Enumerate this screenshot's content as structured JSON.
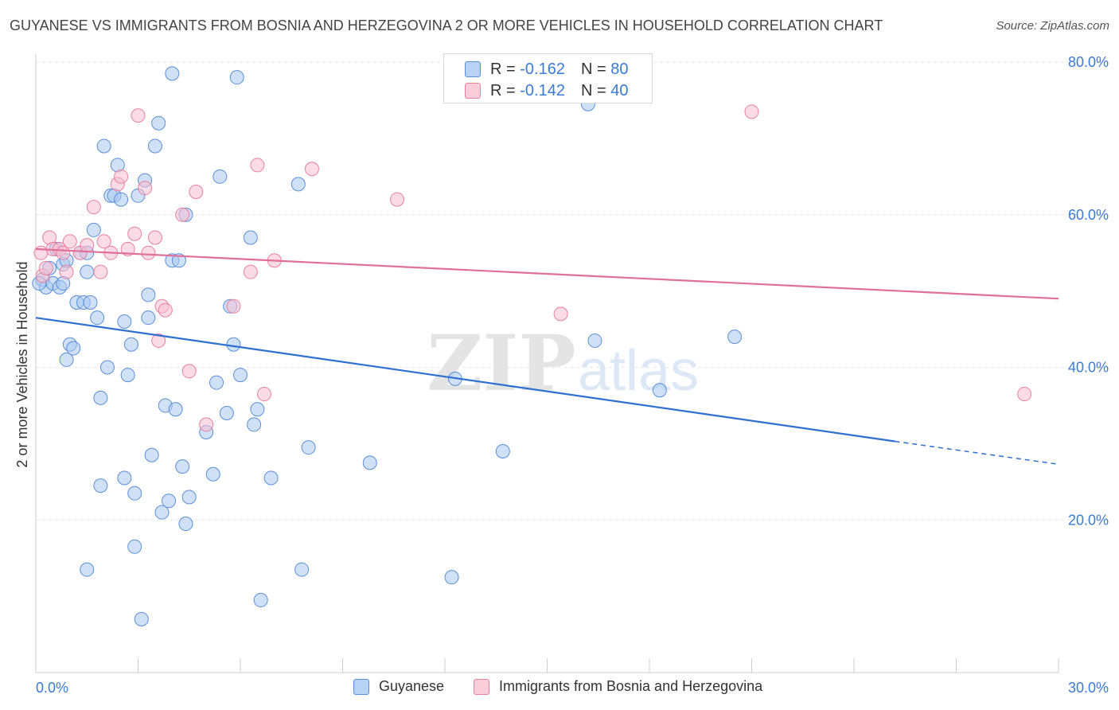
{
  "title": "GUYANESE VS IMMIGRANTS FROM BOSNIA AND HERZEGOVINA 2 OR MORE VEHICLES IN HOUSEHOLD CORRELATION CHART",
  "source": "Source: ZipAtlas.com",
  "watermark": {
    "zip": "ZIP",
    "atlas": "atlas"
  },
  "stats": [
    {
      "r_label": "R =",
      "r_value": "-0.162",
      "n_label": "N =",
      "n_value": "80"
    },
    {
      "r_label": "R =",
      "r_value": "-0.142",
      "n_label": "N =",
      "n_value": "40"
    }
  ],
  "colors": {
    "guyanese_fill": "#a9c8f0",
    "guyanese_stroke": "#5a8fd8",
    "guyanese_line": "#2f6fd1",
    "bosnia_fill": "#f7c0d2",
    "bosnia_stroke": "#e8809f",
    "bosnia_line": "#e0709a",
    "value_text": "#3a7bd5",
    "grid": "#e6e6e6"
  },
  "chart_data": {
    "type": "scatter",
    "title": "GUYANESE VS IMMIGRANTS FROM BOSNIA AND HERZEGOVINA 2 OR MORE VEHICLES IN HOUSEHOLD CORRELATION CHART",
    "xlabel": "",
    "ylabel": "2 or more Vehicles in Household",
    "xlim": [
      0,
      30
    ],
    "ylim": [
      0,
      80
    ],
    "x_tick_labels": [
      "0.0%",
      "30.0%"
    ],
    "y_tick_labels": [
      "20.0%",
      "40.0%",
      "60.0%",
      "80.0%"
    ],
    "y_ticks": [
      20,
      40,
      60,
      80
    ],
    "grid": true,
    "legend_position": "bottom",
    "series": [
      {
        "name": "Guyanese",
        "trend": {
          "x0": 0,
          "y0": 46.5,
          "x1": 25.2,
          "y1": 30.3,
          "dashed_to_x": 30,
          "dashed_to_y": 27.3
        },
        "points": [
          [
            0.2,
            51.5
          ],
          [
            0.3,
            50.5
          ],
          [
            0.4,
            53.0
          ],
          [
            0.5,
            51.0
          ],
          [
            0.6,
            55.5
          ],
          [
            0.7,
            50.5
          ],
          [
            0.8,
            53.5
          ],
          [
            0.8,
            51.0
          ],
          [
            0.9,
            54.0
          ],
          [
            0.9,
            41.0
          ],
          [
            1.0,
            43.0
          ],
          [
            1.1,
            42.5
          ],
          [
            1.2,
            48.5
          ],
          [
            1.3,
            55.0
          ],
          [
            1.4,
            48.5
          ],
          [
            1.5,
            55.0
          ],
          [
            1.5,
            13.5
          ],
          [
            1.5,
            52.5
          ],
          [
            1.6,
            48.5
          ],
          [
            1.7,
            58.0
          ],
          [
            1.8,
            46.5
          ],
          [
            1.9,
            36.0
          ],
          [
            1.9,
            24.5
          ],
          [
            2.0,
            69.0
          ],
          [
            2.1,
            40.0
          ],
          [
            2.2,
            62.5
          ],
          [
            2.3,
            62.5
          ],
          [
            2.4,
            66.5
          ],
          [
            2.5,
            62.0
          ],
          [
            2.6,
            46.0
          ],
          [
            2.6,
            25.5
          ],
          [
            2.7,
            39.0
          ],
          [
            2.8,
            43.0
          ],
          [
            2.9,
            23.5
          ],
          [
            2.9,
            16.5
          ],
          [
            3.0,
            62.5
          ],
          [
            3.1,
            7.0
          ],
          [
            3.2,
            64.5
          ],
          [
            3.3,
            49.5
          ],
          [
            3.3,
            46.5
          ],
          [
            3.4,
            28.5
          ],
          [
            3.5,
            69.0
          ],
          [
            3.6,
            72.0
          ],
          [
            3.7,
            21.0
          ],
          [
            3.8,
            35.0
          ],
          [
            3.9,
            22.5
          ],
          [
            4.0,
            78.5
          ],
          [
            4.0,
            54.0
          ],
          [
            4.1,
            34.5
          ],
          [
            4.2,
            54.0
          ],
          [
            4.3,
            27.0
          ],
          [
            4.4,
            60.0
          ],
          [
            4.4,
            19.5
          ],
          [
            4.5,
            23.0
          ],
          [
            5.0,
            31.5
          ],
          [
            5.2,
            26.0
          ],
          [
            5.3,
            38.0
          ],
          [
            5.4,
            65.0
          ],
          [
            5.6,
            34.0
          ],
          [
            5.7,
            48.0
          ],
          [
            5.8,
            43.0
          ],
          [
            5.9,
            78.0
          ],
          [
            6.0,
            39.0
          ],
          [
            6.3,
            57.0
          ],
          [
            6.4,
            32.5
          ],
          [
            6.5,
            34.5
          ],
          [
            6.6,
            9.5
          ],
          [
            6.9,
            25.5
          ],
          [
            7.7,
            64.0
          ],
          [
            7.8,
            13.5
          ],
          [
            8.0,
            29.5
          ],
          [
            9.8,
            27.5
          ],
          [
            12.2,
            12.5
          ],
          [
            12.3,
            38.5
          ],
          [
            13.7,
            29.0
          ],
          [
            16.2,
            74.5
          ],
          [
            16.4,
            43.5
          ],
          [
            18.3,
            37.0
          ],
          [
            20.5,
            44.0
          ],
          [
            0.1,
            51.0
          ]
        ]
      },
      {
        "name": "Immigrants from Bosnia and Herzegovina",
        "trend": {
          "x0": 0,
          "y0": 55.5,
          "x1": 30,
          "y1": 49.0
        },
        "points": [
          [
            0.2,
            52.0
          ],
          [
            0.3,
            53.0
          ],
          [
            0.4,
            57.0
          ],
          [
            0.5,
            55.5
          ],
          [
            0.7,
            55.5
          ],
          [
            0.8,
            55.0
          ],
          [
            0.9,
            52.5
          ],
          [
            1.0,
            56.5
          ],
          [
            1.3,
            55.0
          ],
          [
            1.5,
            56.0
          ],
          [
            1.7,
            61.0
          ],
          [
            1.9,
            52.5
          ],
          [
            2.0,
            56.5
          ],
          [
            2.2,
            55.0
          ],
          [
            2.4,
            64.0
          ],
          [
            2.5,
            65.0
          ],
          [
            2.7,
            55.5
          ],
          [
            2.9,
            57.5
          ],
          [
            3.0,
            73.0
          ],
          [
            3.2,
            63.5
          ],
          [
            3.3,
            55.0
          ],
          [
            3.5,
            57.0
          ],
          [
            3.6,
            43.5
          ],
          [
            3.7,
            48.0
          ],
          [
            3.8,
            47.5
          ],
          [
            4.3,
            60.0
          ],
          [
            4.5,
            39.5
          ],
          [
            4.7,
            63.0
          ],
          [
            5.0,
            32.5
          ],
          [
            5.8,
            48.0
          ],
          [
            6.3,
            52.5
          ],
          [
            6.5,
            66.5
          ],
          [
            6.7,
            36.5
          ],
          [
            7.0,
            54.0
          ],
          [
            8.1,
            66.0
          ],
          [
            10.6,
            62.0
          ],
          [
            15.4,
            47.0
          ],
          [
            21.0,
            73.5
          ],
          [
            29.0,
            36.5
          ],
          [
            0.15,
            55.0
          ]
        ]
      }
    ]
  },
  "legend": [
    {
      "label": "Guyanese"
    },
    {
      "label": "Immigrants from Bosnia and Herzegovina"
    }
  ]
}
